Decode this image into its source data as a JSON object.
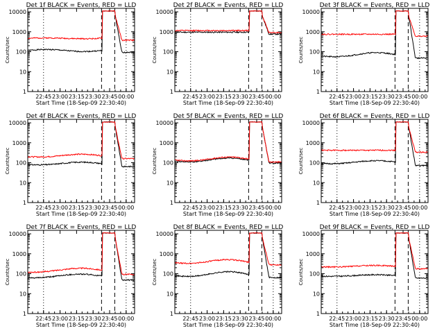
{
  "figure": {
    "ylabel": "Counts/sec",
    "xlabel": "Start Time (18-Sep-09 22:30:40)",
    "xticks": [
      "22:45",
      "23:00",
      "23:15",
      "23:30",
      "23:45",
      "00:00"
    ],
    "yticks": [
      "1",
      "10",
      "100",
      "1000",
      "10000"
    ]
  },
  "colors": {
    "events": "#000000",
    "lld": "#ff0000",
    "axes": "#000000"
  },
  "chart_data": [
    {
      "type": "line",
      "title": "Det 1f BLACK = Events, RED = LLD",
      "yscale": "log",
      "ylim": [
        1,
        15000
      ],
      "series": [
        {
          "name": "Events",
          "level": 115,
          "bumps": [
            0.0,
            0.05,
            0.0
          ]
        },
        {
          "name": "LLD",
          "level": 470,
          "bumps": [
            0.0,
            0.02,
            0.0
          ]
        }
      ]
    },
    {
      "type": "line",
      "title": "Det 2f BLACK = Events, RED = LLD",
      "yscale": "log",
      "ylim": [
        1,
        15000
      ],
      "series": [
        {
          "name": "Events",
          "level": 950,
          "bumps": [
            0.0,
            0.0,
            0.0
          ]
        },
        {
          "name": "LLD",
          "level": 1150,
          "bumps": [
            0.0,
            0.0,
            0.0
          ]
        }
      ]
    },
    {
      "type": "line",
      "title": "Det 3f BLACK = Events, RED = LLD",
      "yscale": "log",
      "ylim": [
        1,
        15000
      ],
      "series": [
        {
          "name": "Events",
          "level": 60,
          "bumps": [
            0.05,
            -0.08,
            0.08
          ]
        },
        {
          "name": "LLD",
          "level": 750,
          "bumps": [
            0.0,
            0.0,
            0.0
          ]
        }
      ]
    },
    {
      "type": "line",
      "title": "Det 4f BLACK = Events, RED = LLD",
      "yscale": "log",
      "ylim": [
        1,
        15000
      ],
      "series": [
        {
          "name": "Events",
          "level": 80,
          "bumps": [
            0.05,
            -0.05,
            0.05
          ]
        },
        {
          "name": "LLD",
          "level": 200,
          "bumps": [
            0.05,
            -0.05,
            0.05
          ]
        }
      ]
    },
    {
      "type": "line",
      "title": "Det 5f BLACK = Events, RED = LLD",
      "yscale": "log",
      "ylim": [
        1,
        15000
      ],
      "series": [
        {
          "name": "Events",
          "level": 120,
          "bumps": [
            0.05,
            -0.08,
            0.05
          ]
        },
        {
          "name": "LLD",
          "level": 135,
          "bumps": [
            0.05,
            -0.08,
            0.05
          ]
        }
      ]
    },
    {
      "type": "line",
      "title": "Det 6f BLACK = Events, RED = LLD",
      "yscale": "log",
      "ylim": [
        1,
        15000
      ],
      "series": [
        {
          "name": "Events",
          "level": 90,
          "bumps": [
            0.05,
            -0.05,
            0.08
          ]
        },
        {
          "name": "LLD",
          "level": 420,
          "bumps": [
            0.0,
            0.0,
            0.0
          ]
        }
      ]
    },
    {
      "type": "line",
      "title": "Det 7f BLACK = Events, RED = LLD",
      "yscale": "log",
      "ylim": [
        1,
        15000
      ],
      "series": [
        {
          "name": "Events",
          "level": 60,
          "bumps": [
            0.1,
            -0.05,
            0.1
          ]
        },
        {
          "name": "LLD",
          "level": 115,
          "bumps": [
            0.1,
            -0.05,
            0.12
          ]
        }
      ]
    },
    {
      "type": "line",
      "title": "Det 8f BLACK = Events, RED = LLD",
      "yscale": "log",
      "ylim": [
        1,
        15000
      ],
      "series": [
        {
          "name": "Events",
          "level": 80,
          "bumps": [
            0.08,
            -0.1,
            0.05
          ]
        },
        {
          "name": "LLD",
          "level": 350,
          "bumps": [
            0.08,
            -0.08,
            0.03
          ]
        }
      ]
    },
    {
      "type": "line",
      "title": "Det 9f BLACK = Events, RED = LLD",
      "yscale": "log",
      "ylim": [
        1,
        15000
      ],
      "series": [
        {
          "name": "Events",
          "level": 75,
          "bumps": [
            0.03,
            -0.03,
            0.03
          ]
        },
        {
          "name": "LLD",
          "level": 220,
          "bumps": [
            0.03,
            -0.03,
            0.03
          ]
        }
      ]
    }
  ]
}
